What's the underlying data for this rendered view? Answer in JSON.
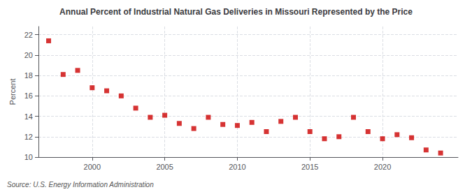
{
  "chart_data": {
    "type": "scatter",
    "title": "Annual Percent of Industrial Natural Gas Deliveries in Missouri Represented by the Price",
    "ylabel": "Percent",
    "annotation": "Source: U.S. Energy Information Administration",
    "x": [
      1997,
      1998,
      1999,
      2000,
      2001,
      2002,
      2003,
      2004,
      2005,
      2006,
      2007,
      2008,
      2009,
      2010,
      2011,
      2012,
      2013,
      2014,
      2015,
      2016,
      2017,
      2018,
      2019,
      2020,
      2021,
      2022,
      2023,
      2024
    ],
    "values": [
      21.4,
      18.1,
      18.5,
      16.8,
      16.5,
      16.0,
      14.8,
      13.9,
      14.1,
      13.3,
      12.8,
      13.9,
      13.2,
      13.1,
      13.4,
      12.5,
      13.5,
      13.9,
      12.5,
      11.8,
      12.0,
      13.9,
      12.5,
      11.8,
      12.2,
      11.9,
      10.7,
      10.4
    ],
    "color": "#cc0000",
    "marker": "square",
    "xlim": [
      1996.3,
      2025.2
    ],
    "xticks": [
      2000,
      2005,
      2010,
      2015,
      2020
    ],
    "ylim": [
      10,
      22.8
    ],
    "yticks": [
      10,
      12,
      14,
      16,
      18,
      20,
      22
    ],
    "grid": true
  }
}
